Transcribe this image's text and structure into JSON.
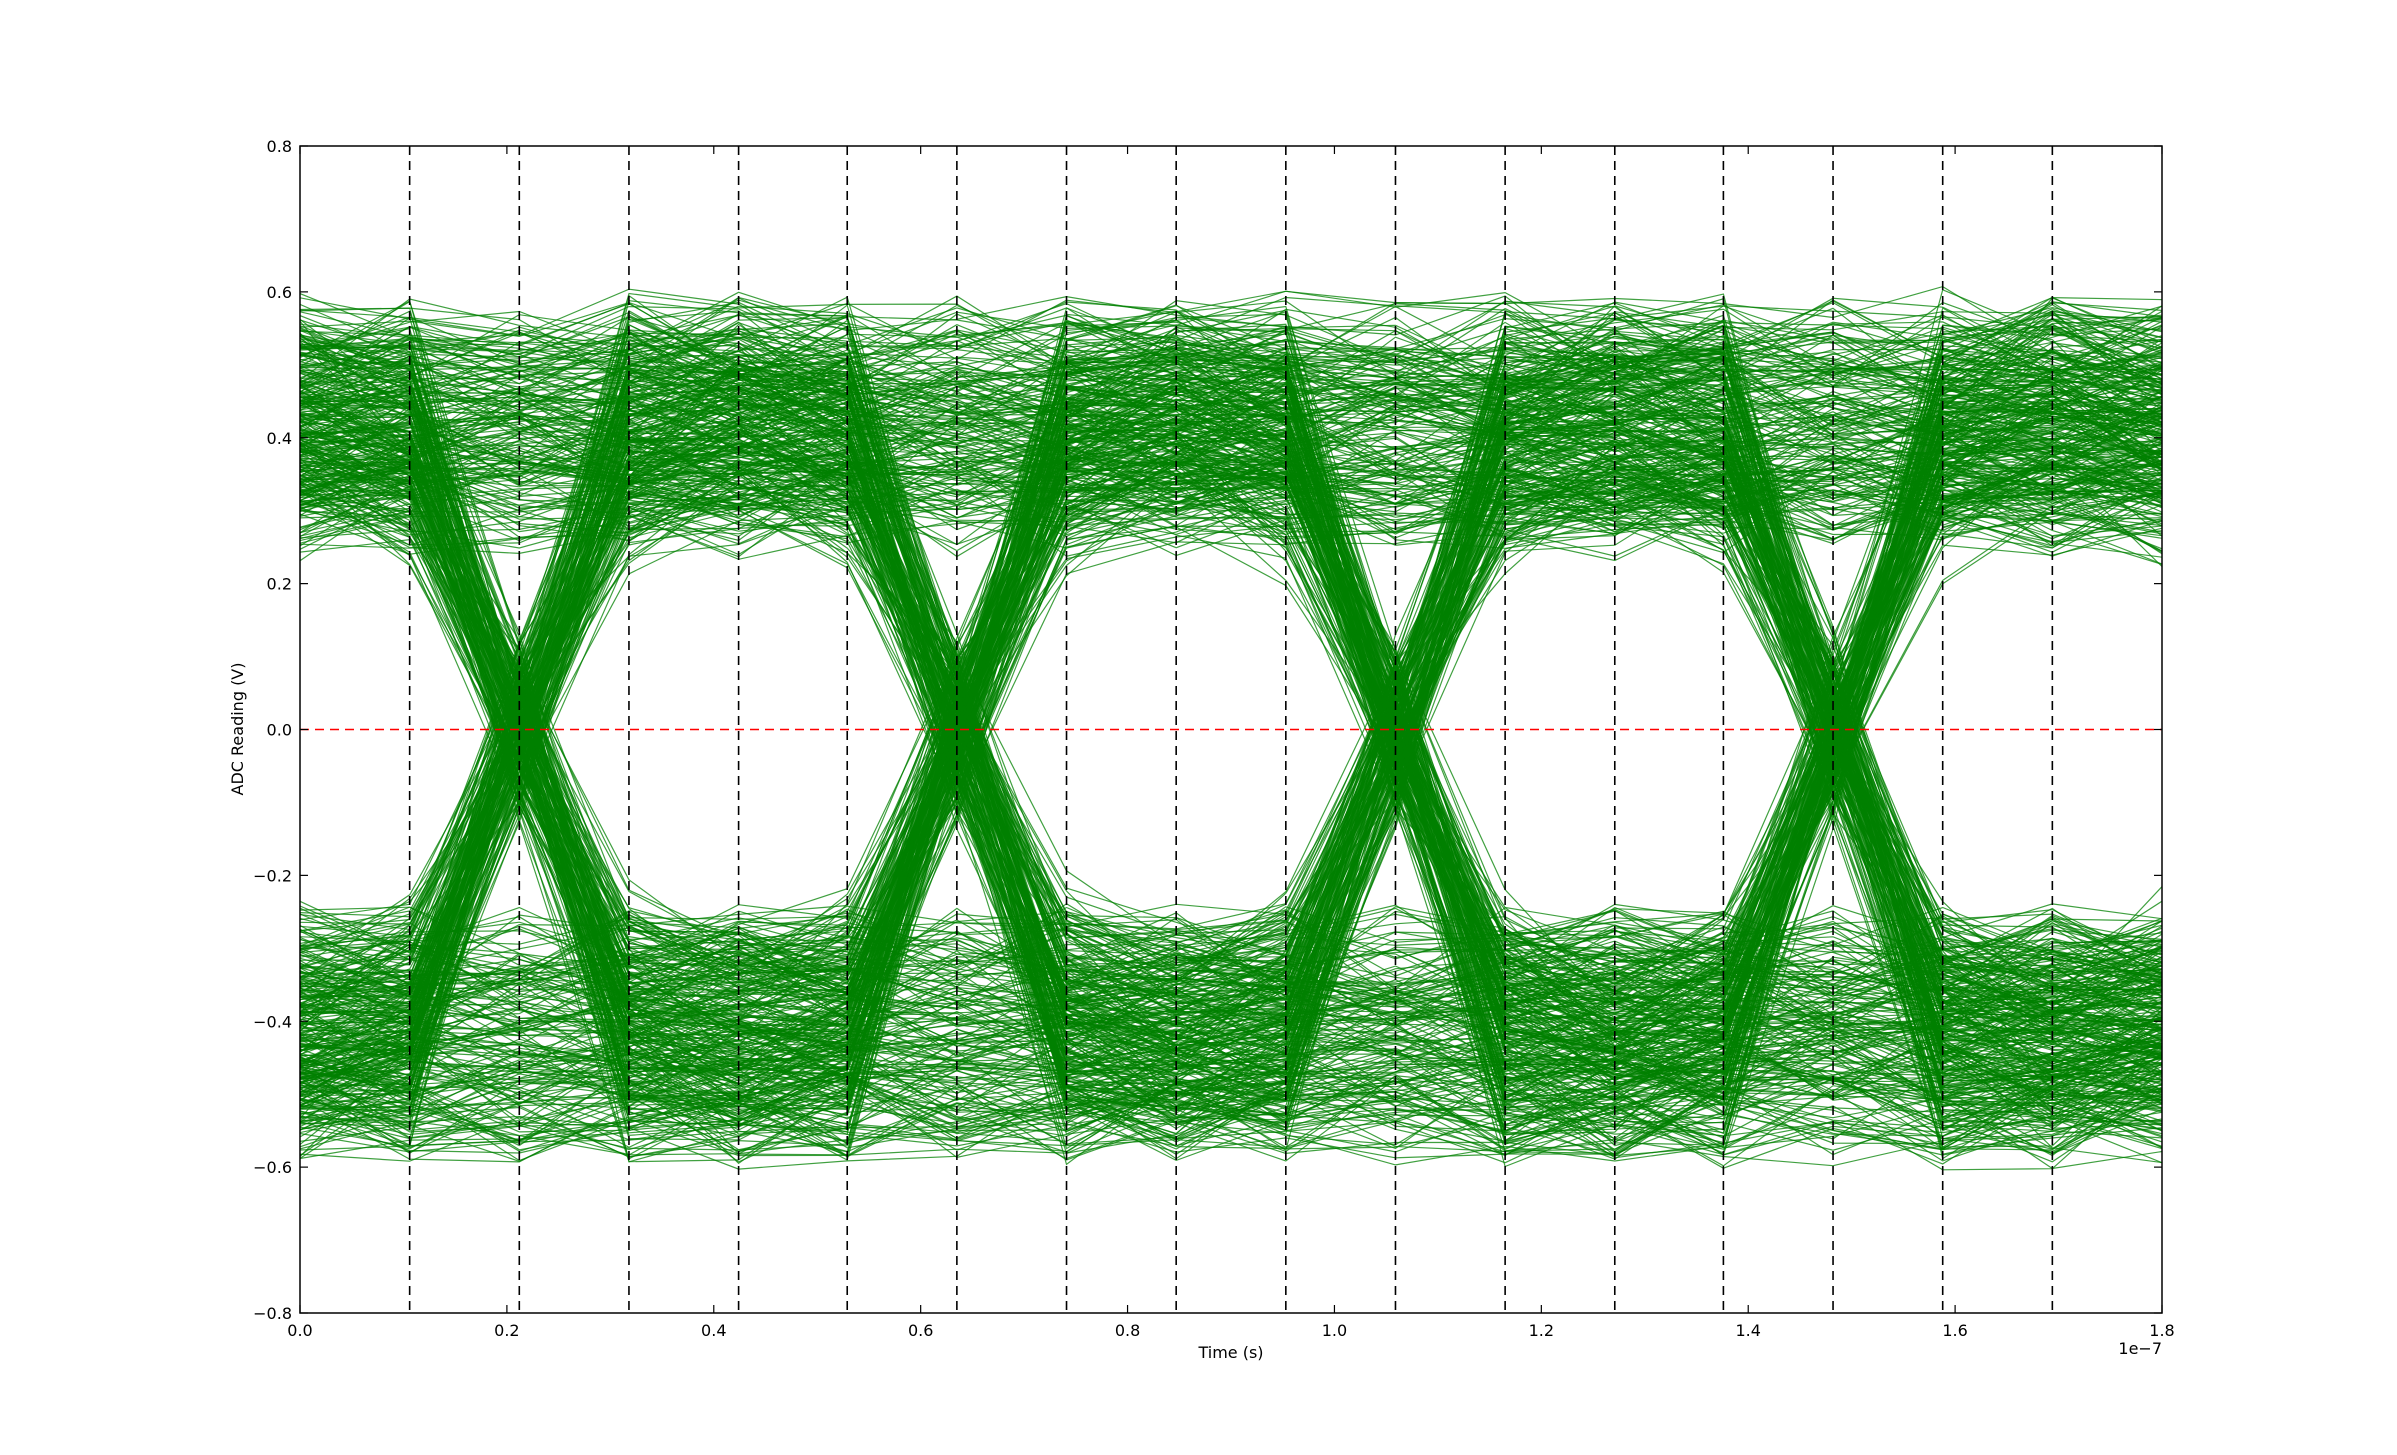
{
  "chart_data": {
    "type": "line",
    "title": "",
    "xlabel": "Time (s)",
    "ylabel": "ADC Reading (V)",
    "x_offset_label": "1e−7",
    "xlim": [
      0.0,
      1.8
    ],
    "ylim": [
      -0.8,
      0.8
    ],
    "x_ticks": [
      0.0,
      0.2,
      0.4,
      0.6,
      0.8,
      1.0,
      1.2,
      1.4,
      1.6,
      1.8
    ],
    "x_tick_labels": [
      "0.0",
      "0.2",
      "0.4",
      "0.6",
      "0.8",
      "1.0",
      "1.2",
      "1.4",
      "1.6",
      "1.8"
    ],
    "y_ticks": [
      -0.8,
      -0.6,
      -0.4,
      -0.2,
      0.0,
      0.2,
      0.4,
      0.6,
      0.8
    ],
    "y_tick_labels": [
      "−0.8",
      "−0.6",
      "−0.4",
      "−0.2",
      "0.0",
      "0.2",
      "0.4",
      "0.6",
      "0.8"
    ],
    "sample_times": [
      0.0,
      0.106,
      0.212,
      0.318,
      0.424,
      0.529,
      0.635,
      0.741,
      0.847,
      0.953,
      1.059,
      1.165,
      1.271,
      1.376,
      1.482,
      1.588,
      1.694,
      1.8
    ],
    "symbol_period": 0.4235,
    "symbol_levels": [
      0.42,
      -0.42
    ],
    "level_spread": 0.13,
    "peak_values": [
      0.7,
      -0.74
    ],
    "trace_count": 700,
    "threshold": 0.0,
    "vertical_markers": [
      0.106,
      0.212,
      0.318,
      0.424,
      0.529,
      0.635,
      0.741,
      0.847,
      0.953,
      1.059,
      1.165,
      1.271,
      1.376,
      1.482,
      1.588,
      1.694
    ],
    "colors": {
      "traces": "#008000",
      "threshold": "#ff0000",
      "markers": "#000000",
      "axes": "#000000"
    },
    "grid": false,
    "legend": "none"
  }
}
